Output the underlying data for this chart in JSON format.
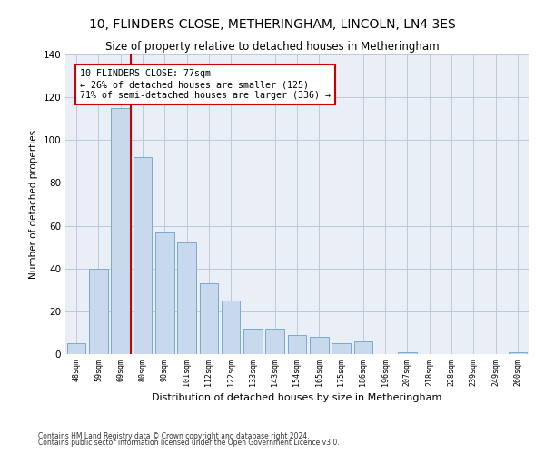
{
  "title": "10, FLINDERS CLOSE, METHERINGHAM, LINCOLN, LN4 3ES",
  "subtitle": "Size of property relative to detached houses in Metheringham",
  "xlabel": "Distribution of detached houses by size in Metheringham",
  "ylabel": "Number of detached properties",
  "categories": [
    "48sqm",
    "59sqm",
    "69sqm",
    "80sqm",
    "90sqm",
    "101sqm",
    "112sqm",
    "122sqm",
    "133sqm",
    "143sqm",
    "154sqm",
    "165sqm",
    "175sqm",
    "186sqm",
    "196sqm",
    "207sqm",
    "218sqm",
    "228sqm",
    "239sqm",
    "249sqm",
    "260sqm"
  ],
  "values": [
    5,
    40,
    115,
    92,
    57,
    52,
    33,
    25,
    12,
    12,
    9,
    8,
    5,
    6,
    0,
    1,
    0,
    0,
    0,
    0,
    1
  ],
  "bar_color": "#c9d9ed",
  "bar_edge_color": "#7aaacf",
  "property_line_color": "#cc0000",
  "annotation_text": "10 FLINDERS CLOSE: 77sqm\n← 26% of detached houses are smaller (125)\n71% of semi-detached houses are larger (336) →",
  "annotation_box_color": "#cc0000",
  "annotation_text_color": "#000000",
  "ylim": [
    0,
    140
  ],
  "yticks": [
    0,
    20,
    40,
    60,
    80,
    100,
    120,
    140
  ],
  "footer_line1": "Contains HM Land Registry data © Crown copyright and database right 2024.",
  "footer_line2": "Contains public sector information licensed under the Open Government Licence v3.0.",
  "background_color": "#ffffff",
  "plot_bg_color": "#eaeff7",
  "grid_color": "#c0c8d8",
  "title_fontsize": 10,
  "subtitle_fontsize": 8.5,
  "bar_width": 0.85
}
